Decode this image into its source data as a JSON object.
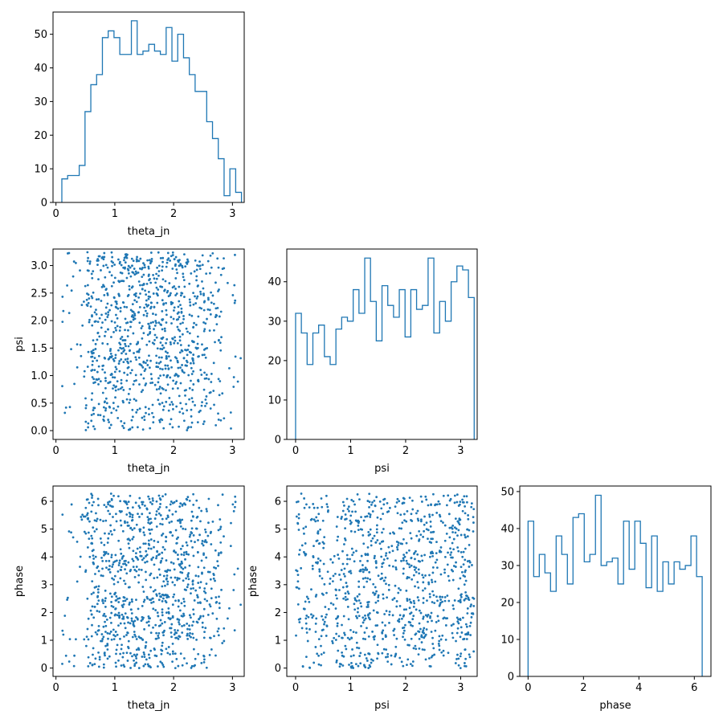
{
  "colors": {
    "series": "#1f77b4",
    "axis": "#000000",
    "background": "#ffffff"
  },
  "chart_data": [
    {
      "id": "hist-theta_jn",
      "type": "histogram",
      "xlabel": "theta_jn",
      "ylabel": "",
      "xlim": [
        -0.05,
        3.2
      ],
      "ylim": [
        0,
        56.6
      ],
      "xticks": [
        0,
        1,
        2,
        3
      ],
      "yticks": [
        0,
        10,
        20,
        30,
        40,
        50
      ],
      "bin_start": 0.1,
      "bin_width": 0.0985,
      "counts": [
        7,
        8,
        8,
        11,
        27,
        35,
        38,
        49,
        51,
        49,
        44,
        44,
        54,
        44,
        45,
        47,
        45,
        44,
        52,
        42,
        50,
        43,
        38,
        33,
        33,
        24,
        19,
        13,
        2,
        10,
        3
      ]
    },
    {
      "id": "scatter-theta_jn-psi",
      "type": "scatter",
      "xlabel": "theta_jn",
      "ylabel": "psi",
      "xlim": [
        -0.05,
        3.2
      ],
      "ylim": [
        -0.16,
        3.3
      ],
      "xticks": [
        0,
        1,
        2,
        3
      ],
      "yticks": [
        0.0,
        0.5,
        1.0,
        1.5,
        2.0,
        2.5,
        3.0
      ],
      "n_points": 1000
    },
    {
      "id": "hist-psi",
      "type": "histogram",
      "xlabel": "psi",
      "ylabel": "",
      "xlim": [
        -0.16,
        3.3
      ],
      "ylim": [
        0,
        48.3
      ],
      "xticks": [
        0,
        1,
        2,
        3
      ],
      "yticks": [
        0,
        10,
        20,
        30,
        40
      ],
      "bin_start": 0.0,
      "bin_width": 0.1047,
      "counts": [
        32,
        27,
        19,
        27,
        29,
        21,
        19,
        28,
        31,
        30,
        38,
        32,
        46,
        35,
        25,
        39,
        34,
        31,
        38,
        26,
        38,
        33,
        34,
        46,
        27,
        35,
        30,
        40,
        44,
        43,
        36
      ]
    },
    {
      "id": "scatter-theta_jn-phase",
      "type": "scatter",
      "xlabel": "theta_jn",
      "ylabel": "phase",
      "xlim": [
        -0.05,
        3.2
      ],
      "ylim": [
        -0.3,
        6.55
      ],
      "xticks": [
        0,
        1,
        2,
        3
      ],
      "yticks": [
        0,
        1,
        2,
        3,
        4,
        5,
        6
      ],
      "n_points": 1000
    },
    {
      "id": "scatter-psi-phase",
      "type": "scatter",
      "xlabel": "psi",
      "ylabel": "phase",
      "xlim": [
        -0.16,
        3.3
      ],
      "ylim": [
        -0.3,
        6.55
      ],
      "xticks": [
        0,
        1,
        2,
        3
      ],
      "yticks": [
        0,
        1,
        2,
        3,
        4,
        5,
        6
      ],
      "n_points": 1000
    },
    {
      "id": "hist-phase",
      "type": "histogram",
      "xlabel": "phase",
      "ylabel": "",
      "xlim": [
        -0.3,
        6.6
      ],
      "ylim": [
        0,
        51.5
      ],
      "xticks": [
        0,
        2,
        4,
        6
      ],
      "yticks": [
        0,
        10,
        20,
        30,
        40,
        50
      ],
      "bin_start": 0.0,
      "bin_width": 0.2027,
      "counts": [
        42,
        27,
        33,
        28,
        23,
        38,
        33,
        25,
        43,
        44,
        31,
        33,
        49,
        30,
        31,
        32,
        25,
        42,
        29,
        42,
        36,
        24,
        38,
        23,
        31,
        25,
        31,
        29,
        30,
        38,
        27
      ]
    }
  ]
}
